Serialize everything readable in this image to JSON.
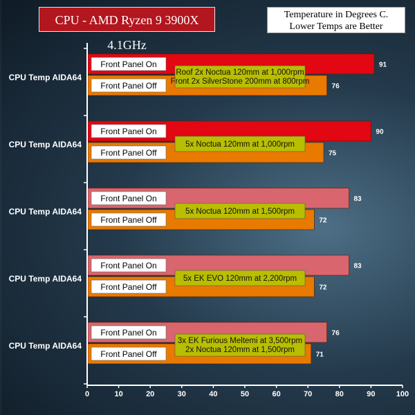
{
  "chart_data": {
    "type": "bar",
    "orientation": "horizontal",
    "title": "CPU - AMD Ryzen 9 3900X 4.1GHz",
    "subtitle": [
      "Temperature in Degrees C.",
      "Lower Temps are Better"
    ],
    "xlim": [
      0,
      100
    ],
    "xticks": [
      0,
      10,
      20,
      30,
      40,
      50,
      60,
      70,
      80,
      90,
      100
    ],
    "grid": false,
    "series_labels": [
      "Front Panel On",
      "Front Panel Off"
    ],
    "groups": [
      {
        "category": "CPU Temp AIDA64",
        "config": [
          "Roof 2x Noctua 120mm at 1,000rpm",
          "Front 2x SilverStone 200mm at 800rpm"
        ],
        "values": [
          91,
          76
        ]
      },
      {
        "category": "CPU Temp AIDA64",
        "config": [
          "5x Noctua 120mm at 1,000rpm"
        ],
        "values": [
          90,
          75
        ]
      },
      {
        "category": "CPU Temp AIDA64",
        "config": [
          "5x Noctua 120mm at 1,500rpm"
        ],
        "values": [
          83,
          72
        ]
      },
      {
        "category": "CPU Temp AIDA64",
        "config": [
          "5x EK EVO 120mm at 2,200rpm"
        ],
        "values": [
          83,
          72
        ]
      },
      {
        "category": "CPU Temp AIDA64",
        "config": [
          "3x EK Furious Meltemi at 3,500rpm",
          "2x Noctua 120mm at 1,500rpm"
        ],
        "values": [
          76,
          71
        ]
      }
    ],
    "colors": {
      "on_hot": "#e30613",
      "on_mild": "#d9666e",
      "off": "#e87a00",
      "config_box": "#b9be00",
      "label_box": "#ffffff",
      "axis": "#ffffff"
    }
  }
}
